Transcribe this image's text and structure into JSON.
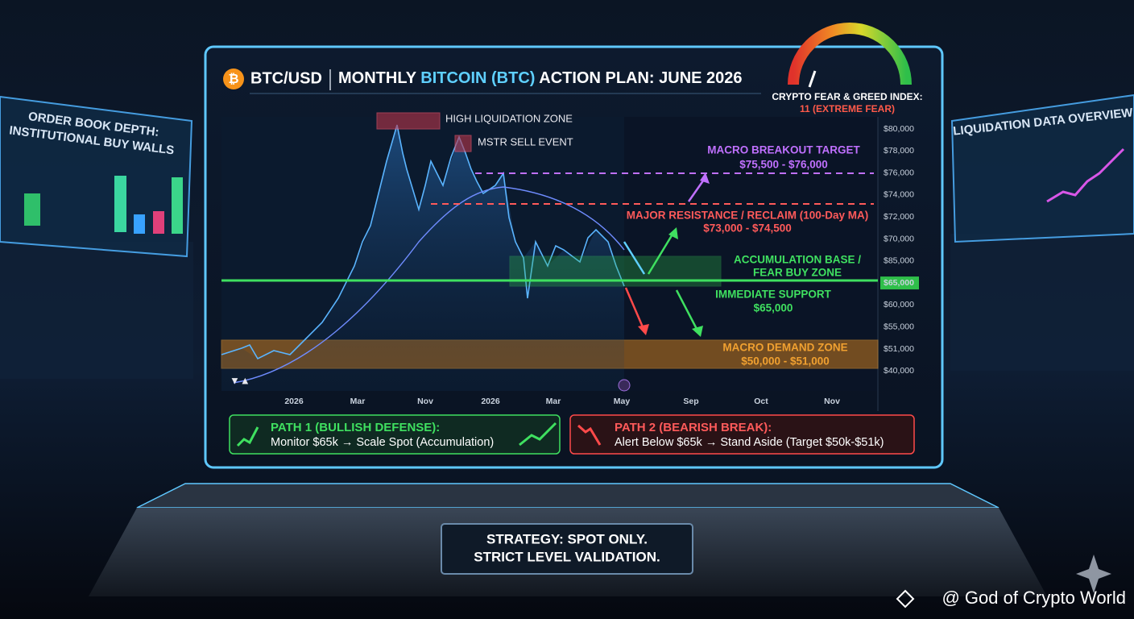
{
  "header": {
    "icon": "₿",
    "ticker": "BTC/USD",
    "title_prefix": "MONTHLY ",
    "title_highlight": "BITCOIN (BTC)",
    "title_suffix": " ACTION PLAN: JUNE 2026"
  },
  "fear_greed": {
    "label": "CRYPTO FEAR & GREED INDEX:",
    "value_text": "11 (EXTREME FEAR)"
  },
  "side_left": {
    "title_lines": [
      "ORDER BOOK DEPTH:",
      "INSTITUTIONAL BUY WALLS"
    ]
  },
  "side_right": {
    "title": "LIQUIDATION DATA OVERVIEW"
  },
  "y_axis_labels": [
    "$80,000",
    "$78,000",
    "$76,000",
    "$74,000",
    "$72,000",
    "$70,000",
    "$85,000",
    "$65,000",
    "$60,000",
    "$55,000",
    "$51,000",
    "$40,000"
  ],
  "x_axis_labels": [
    "2026",
    "Mar",
    "Nov",
    "2026",
    "Mar",
    "May",
    "Sep",
    "Oct",
    "Nov"
  ],
  "annotations": {
    "high_liquidation": "HIGH LIQUIDATION ZONE",
    "mstr_sell": "MSTR SELL EVENT",
    "breakout": [
      "MACRO BREAKOUT TARGET",
      "$75,500 - $76,000"
    ],
    "resistance": [
      "MAJOR RESISTANCE / RECLAIM (100-Day MA)",
      "$73,000 - $74,500"
    ],
    "accumulation": [
      "ACCUMULATION BASE /",
      "FEAR BUY ZONE"
    ],
    "support": [
      "IMMEDIATE SUPPORT",
      "$65,000"
    ],
    "demand": [
      "MACRO DEMAND ZONE",
      "$50,000 - $51,000"
    ]
  },
  "paths": [
    {
      "title": "PATH 1 (BULLISH DEFENSE):",
      "text": "Monitor $65k → Scale Spot (Accumulation)"
    },
    {
      "title": "PATH 2 (BEARISH BREAK):",
      "text": "Alert Below $65k → Stand Aside (Target $50k-$51k)"
    }
  ],
  "strategy": [
    "STRATEGY: SPOT ONLY.",
    "STRICT LEVEL VALIDATION."
  ],
  "watermark": "@ God of Crypto World"
}
